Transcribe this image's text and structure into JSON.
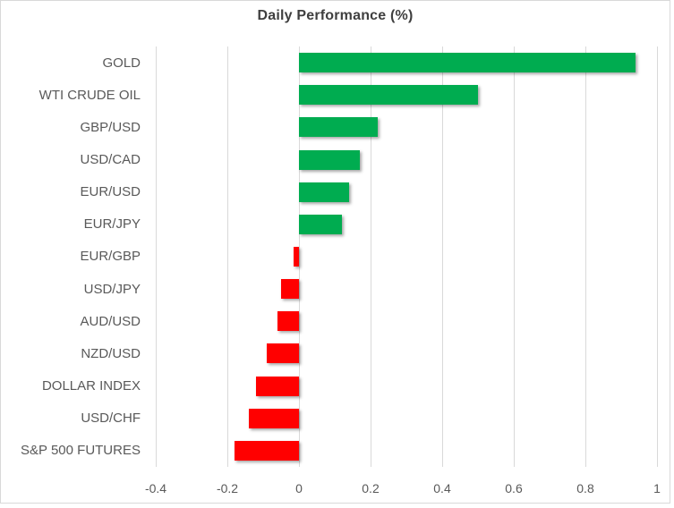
{
  "chart_data": {
    "type": "bar",
    "orientation": "horizontal",
    "title": "Daily Performance (%)",
    "categories": [
      "GOLD",
      "WTI CRUDE OIL",
      "GBP/USD",
      "USD/CAD",
      "EUR/USD",
      "EUR/JPY",
      "EUR/GBP",
      "USD/JPY",
      "AUD/USD",
      "NZD/USD",
      "DOLLAR INDEX",
      "USD/CHF",
      "S&P 500 FUTURES"
    ],
    "values": [
      0.94,
      0.5,
      0.22,
      0.17,
      0.14,
      0.12,
      -0.015,
      -0.05,
      -0.06,
      -0.09,
      -0.12,
      -0.14,
      -0.18
    ],
    "xlim": [
      -0.4,
      1.0
    ],
    "x_ticks": [
      -0.4,
      -0.2,
      0,
      0.2,
      0.4,
      0.6,
      0.8,
      1
    ],
    "x_tick_labels": [
      "-0.4",
      "-0.2",
      "0",
      "0.2",
      "0.4",
      "0.6",
      "0.8",
      "1"
    ],
    "xlabel": "",
    "ylabel": "",
    "grid": true,
    "legend": "none",
    "positive_color": "#00AC50",
    "negative_color": "#FF0000",
    "gridline_color": "#D9D9D9",
    "axis_label_color": "#595959",
    "title_color": "#3F3F3F",
    "background_color": "#FFFFFF"
  }
}
